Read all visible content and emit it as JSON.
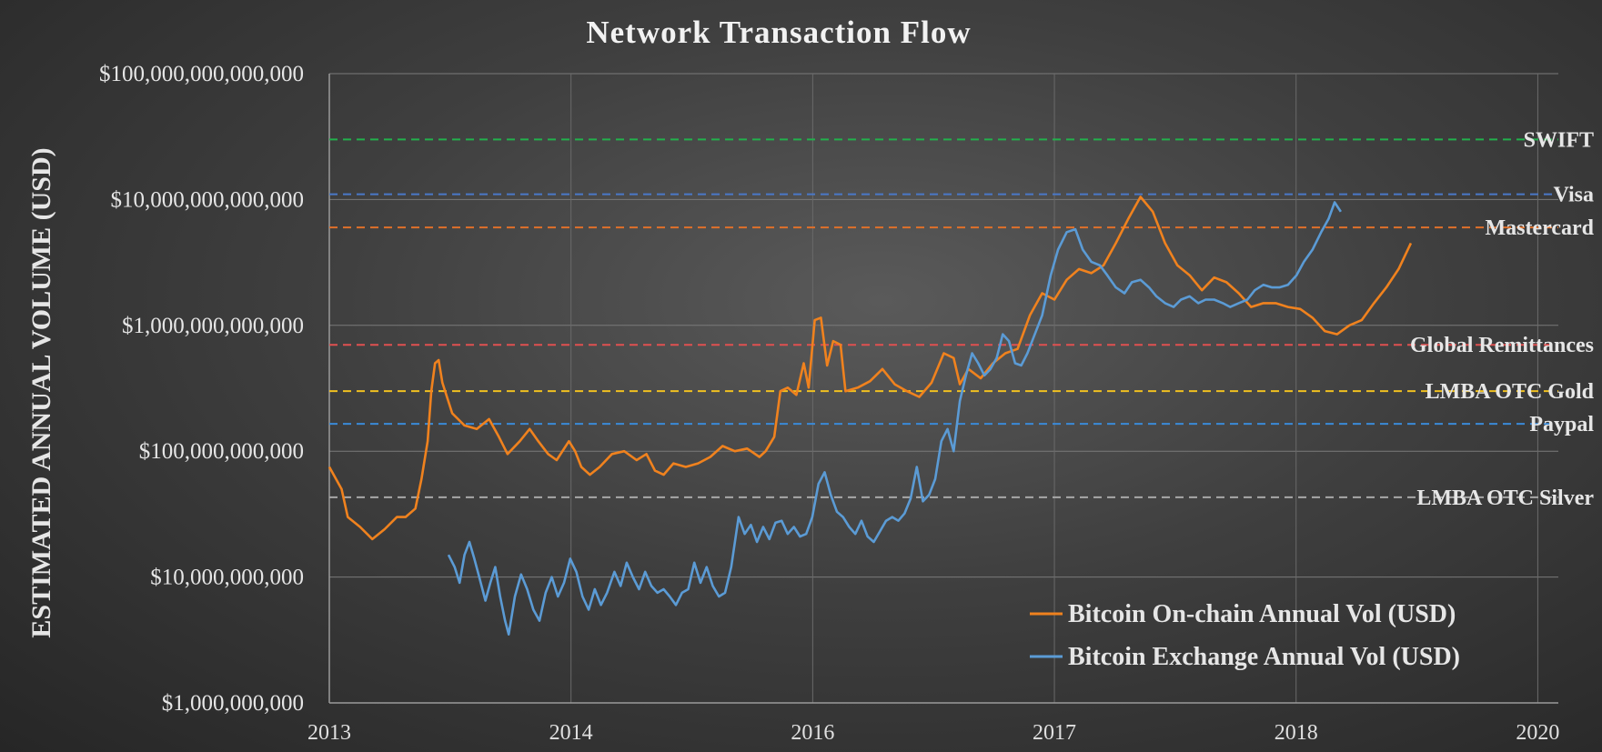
{
  "chart_data": {
    "type": "line",
    "title": "Network Transaction Flow",
    "xlabel": "",
    "ylabel": "ESTIMATED ANNUAL VOLUME (USD)",
    "yscale": "log",
    "ylim": [
      1000000000,
      100000000000000
    ],
    "y_tick_values": [
      1000000000,
      10000000000,
      100000000000,
      1000000000000,
      10000000000000,
      100000000000000
    ],
    "y_tick_labels": [
      "$1,000,000,000",
      "$10,000,000,000",
      "$100,000,000,000",
      "$1,000,000,000,000",
      "$10,000,000,000,000",
      "$100,000,000,000,000"
    ],
    "x_tick_labels": [
      "2013",
      "2014",
      "2016",
      "2017",
      "2018",
      "2020"
    ],
    "grid": true,
    "legend_position": "bottom-right",
    "benchmarks": [
      {
        "name": "SWIFT",
        "value": 30000000000000,
        "color": "#22b14c"
      },
      {
        "name": "Visa",
        "value": 11000000000000,
        "color": "#4a78c8"
      },
      {
        "name": "Mastercard",
        "value": 6000000000000,
        "color": "#e0702a"
      },
      {
        "name": "Global Remittances",
        "value": 700000000000,
        "color": "#e05050"
      },
      {
        "name": "LMBA OTC Gold",
        "value": 300000000000,
        "color": "#f0c020"
      },
      {
        "name": "Paypal",
        "value": 165000000000,
        "color": "#3a8ad8"
      },
      {
        "name": "LMBA OTC Silver",
        "value": 43000000000,
        "color": "#a8a8a8"
      }
    ],
    "series": [
      {
        "name": "Bitcoin On-chain Annual Vol (USD)",
        "color": "#f0821e",
        "points": [
          [
            0.0,
            75000000000.0
          ],
          [
            0.01,
            50000000000.0
          ],
          [
            0.015,
            30000000000.0
          ],
          [
            0.025,
            25000000000.0
          ],
          [
            0.035,
            20000000000.0
          ],
          [
            0.045,
            24000000000.0
          ],
          [
            0.055,
            30000000000.0
          ],
          [
            0.062,
            30000000000.0
          ],
          [
            0.07,
            35000000000.0
          ],
          [
            0.075,
            60000000000.0
          ],
          [
            0.08,
            120000000000.0
          ],
          [
            0.083,
            300000000000.0
          ],
          [
            0.086,
            500000000000.0
          ],
          [
            0.089,
            530000000000.0
          ],
          [
            0.092,
            350000000000.0
          ],
          [
            0.1,
            200000000000.0
          ],
          [
            0.11,
            160000000000.0
          ],
          [
            0.12,
            150000000000.0
          ],
          [
            0.13,
            180000000000.0
          ],
          [
            0.138,
            130000000000.0
          ],
          [
            0.145,
            95000000000.0
          ],
          [
            0.155,
            120000000000.0
          ],
          [
            0.163,
            150000000000.0
          ],
          [
            0.17,
            120000000000.0
          ],
          [
            0.178,
            95000000000.0
          ],
          [
            0.185,
            85000000000.0
          ],
          [
            0.195,
            120000000000.0
          ],
          [
            0.2,
            100000000000.0
          ],
          [
            0.205,
            75000000000.0
          ],
          [
            0.212,
            65000000000.0
          ],
          [
            0.22,
            75000000000.0
          ],
          [
            0.23,
            95000000000.0
          ],
          [
            0.24,
            100000000000.0
          ],
          [
            0.25,
            85000000000.0
          ],
          [
            0.258,
            95000000000.0
          ],
          [
            0.265,
            70000000000.0
          ],
          [
            0.272,
            65000000000.0
          ],
          [
            0.28,
            80000000000.0
          ],
          [
            0.29,
            75000000000.0
          ],
          [
            0.3,
            80000000000.0
          ],
          [
            0.31,
            90000000000.0
          ],
          [
            0.32,
            110000000000.0
          ],
          [
            0.33,
            100000000000.0
          ],
          [
            0.34,
            105000000000.0
          ],
          [
            0.35,
            90000000000.0
          ],
          [
            0.355,
            100000000000.0
          ],
          [
            0.362,
            130000000000.0
          ],
          [
            0.367,
            300000000000.0
          ],
          [
            0.373,
            320000000000.0
          ],
          [
            0.38,
            280000000000.0
          ],
          [
            0.386,
            500000000000.0
          ],
          [
            0.39,
            320000000000.0
          ],
          [
            0.395,
            1100000000000.0
          ],
          [
            0.4,
            1150000000000.0
          ],
          [
            0.405,
            480000000000.0
          ],
          [
            0.41,
            750000000000.0
          ],
          [
            0.416,
            700000000000.0
          ],
          [
            0.42,
            300000000000.0
          ],
          [
            0.43,
            320000000000.0
          ],
          [
            0.44,
            360000000000.0
          ],
          [
            0.45,
            450000000000.0
          ],
          [
            0.46,
            340000000000.0
          ],
          [
            0.47,
            300000000000.0
          ],
          [
            0.48,
            270000000000.0
          ],
          [
            0.49,
            350000000000.0
          ],
          [
            0.5,
            600000000000.0
          ],
          [
            0.508,
            550000000000.0
          ],
          [
            0.513,
            340000000000.0
          ],
          [
            0.52,
            450000000000.0
          ],
          [
            0.53,
            380000000000.0
          ],
          [
            0.54,
            500000000000.0
          ],
          [
            0.55,
            600000000000.0
          ],
          [
            0.56,
            650000000000.0
          ],
          [
            0.57,
            1200000000000.0
          ],
          [
            0.58,
            1800000000000.0
          ],
          [
            0.59,
            1600000000000.0
          ],
          [
            0.6,
            2300000000000.0
          ],
          [
            0.61,
            2800000000000.0
          ],
          [
            0.62,
            2600000000000.0
          ],
          [
            0.63,
            3000000000000.0
          ],
          [
            0.64,
            4500000000000.0
          ],
          [
            0.65,
            7000000000000.0
          ],
          [
            0.66,
            10500000000000.0
          ],
          [
            0.67,
            8000000000000.0
          ],
          [
            0.68,
            4500000000000.0
          ],
          [
            0.69,
            3000000000000.0
          ],
          [
            0.7,
            2500000000000.0
          ],
          [
            0.71,
            1900000000000.0
          ],
          [
            0.72,
            2400000000000.0
          ],
          [
            0.73,
            2200000000000.0
          ],
          [
            0.74,
            1800000000000.0
          ],
          [
            0.75,
            1400000000000.0
          ],
          [
            0.76,
            1500000000000.0
          ],
          [
            0.77,
            1500000000000.0
          ],
          [
            0.78,
            1400000000000.0
          ],
          [
            0.79,
            1350000000000.0
          ],
          [
            0.8,
            1150000000000.0
          ],
          [
            0.81,
            900000000000.0
          ],
          [
            0.82,
            850000000000.0
          ],
          [
            0.83,
            1000000000000.0
          ],
          [
            0.84,
            1100000000000.0
          ],
          [
            0.85,
            1500000000000.0
          ],
          [
            0.86,
            2000000000000.0
          ],
          [
            0.87,
            2800000000000.0
          ],
          [
            0.88,
            4500000000000.0
          ]
        ]
      },
      {
        "name": "Bitcoin Exchange Annual Vol (USD)",
        "color": "#5b9bd5",
        "points": [
          [
            0.097,
            15000000000.0
          ],
          [
            0.102,
            12000000000.0
          ],
          [
            0.106,
            9000000000.0
          ],
          [
            0.11,
            15000000000.0
          ],
          [
            0.114,
            19000000000.0
          ],
          [
            0.118,
            14000000000.0
          ],
          [
            0.122,
            10000000000.0
          ],
          [
            0.127,
            6500000000.0
          ],
          [
            0.131,
            9000000000.0
          ],
          [
            0.135,
            12000000000.0
          ],
          [
            0.139,
            7000000000.0
          ],
          [
            0.143,
            4500000000.0
          ],
          [
            0.146,
            3500000000.0
          ],
          [
            0.151,
            7000000000.0
          ],
          [
            0.156,
            10500000000.0
          ],
          [
            0.161,
            8000000000.0
          ],
          [
            0.166,
            5500000000.0
          ],
          [
            0.171,
            4500000000.0
          ],
          [
            0.176,
            7500000000.0
          ],
          [
            0.181,
            10000000000.0
          ],
          [
            0.186,
            7000000000.0
          ],
          [
            0.191,
            9000000000.0
          ],
          [
            0.196,
            14000000000.0
          ],
          [
            0.201,
            11000000000.0
          ],
          [
            0.206,
            7000000000.0
          ],
          [
            0.211,
            5500000000.0
          ],
          [
            0.216,
            8000000000.0
          ],
          [
            0.221,
            6000000000.0
          ],
          [
            0.226,
            7500000000.0
          ],
          [
            0.232,
            11000000000.0
          ],
          [
            0.237,
            8500000000.0
          ],
          [
            0.242,
            13000000000.0
          ],
          [
            0.247,
            10000000000.0
          ],
          [
            0.252,
            8000000000.0
          ],
          [
            0.257,
            11000000000.0
          ],
          [
            0.262,
            8500000000.0
          ],
          [
            0.267,
            7500000000.0
          ],
          [
            0.272,
            8000000000.0
          ],
          [
            0.277,
            7000000000.0
          ],
          [
            0.282,
            6000000000.0
          ],
          [
            0.287,
            7500000000.0
          ],
          [
            0.292,
            8000000000.0
          ],
          [
            0.297,
            13000000000.0
          ],
          [
            0.302,
            9000000000.0
          ],
          [
            0.307,
            12000000000.0
          ],
          [
            0.312,
            8500000000.0
          ],
          [
            0.317,
            7000000000.0
          ],
          [
            0.322,
            7500000000.0
          ],
          [
            0.327,
            12000000000.0
          ],
          [
            0.333,
            30000000000.0
          ],
          [
            0.338,
            22000000000.0
          ],
          [
            0.343,
            26000000000.0
          ],
          [
            0.348,
            19000000000.0
          ],
          [
            0.353,
            25000000000.0
          ],
          [
            0.358,
            20000000000.0
          ],
          [
            0.363,
            27000000000.0
          ],
          [
            0.368,
            28000000000.0
          ],
          [
            0.373,
            22000000000.0
          ],
          [
            0.378,
            25000000000.0
          ],
          [
            0.383,
            21000000000.0
          ],
          [
            0.388,
            22000000000.0
          ],
          [
            0.393,
            30000000000.0
          ],
          [
            0.398,
            55000000000.0
          ],
          [
            0.403,
            68000000000.0
          ],
          [
            0.408,
            45000000000.0
          ],
          [
            0.413,
            33000000000.0
          ],
          [
            0.418,
            30000000000.0
          ],
          [
            0.423,
            25000000000.0
          ],
          [
            0.428,
            22000000000.0
          ],
          [
            0.433,
            28000000000.0
          ],
          [
            0.438,
            21000000000.0
          ],
          [
            0.443,
            19000000000.0
          ],
          [
            0.448,
            23000000000.0
          ],
          [
            0.453,
            28000000000.0
          ],
          [
            0.458,
            30000000000.0
          ],
          [
            0.463,
            28000000000.0
          ],
          [
            0.468,
            32000000000.0
          ],
          [
            0.473,
            42000000000.0
          ],
          [
            0.478,
            75000000000.0
          ],
          [
            0.483,
            40000000000.0
          ],
          [
            0.488,
            45000000000.0
          ],
          [
            0.493,
            60000000000.0
          ],
          [
            0.498,
            120000000000.0
          ],
          [
            0.503,
            150000000000.0
          ],
          [
            0.508,
            100000000000.0
          ],
          [
            0.513,
            250000000000.0
          ],
          [
            0.518,
            400000000000.0
          ],
          [
            0.523,
            600000000000.0
          ],
          [
            0.528,
            500000000000.0
          ],
          [
            0.533,
            400000000000.0
          ],
          [
            0.538,
            450000000000.0
          ],
          [
            0.543,
            550000000000.0
          ],
          [
            0.548,
            850000000000.0
          ],
          [
            0.553,
            750000000000.0
          ],
          [
            0.558,
            500000000000.0
          ],
          [
            0.563,
            480000000000.0
          ],
          [
            0.568,
            600000000000.0
          ],
          [
            0.573,
            800000000000.0
          ],
          [
            0.58,
            1200000000000.0
          ],
          [
            0.587,
            2500000000000.0
          ],
          [
            0.593,
            4000000000000.0
          ],
          [
            0.6,
            5500000000000.0
          ],
          [
            0.607,
            5800000000000.0
          ],
          [
            0.613,
            4000000000000.0
          ],
          [
            0.62,
            3200000000000.0
          ],
          [
            0.627,
            3000000000000.0
          ],
          [
            0.633,
            2500000000000.0
          ],
          [
            0.64,
            2000000000000.0
          ],
          [
            0.647,
            1800000000000.0
          ],
          [
            0.653,
            2200000000000.0
          ],
          [
            0.66,
            2300000000000.0
          ],
          [
            0.667,
            2000000000000.0
          ],
          [
            0.673,
            1700000000000.0
          ],
          [
            0.68,
            1500000000000.0
          ],
          [
            0.687,
            1400000000000.0
          ],
          [
            0.693,
            1600000000000.0
          ],
          [
            0.7,
            1700000000000.0
          ],
          [
            0.707,
            1500000000000.0
          ],
          [
            0.713,
            1600000000000.0
          ],
          [
            0.72,
            1600000000000.0
          ],
          [
            0.727,
            1500000000000.0
          ],
          [
            0.733,
            1400000000000.0
          ],
          [
            0.74,
            1500000000000.0
          ],
          [
            0.747,
            1600000000000.0
          ],
          [
            0.753,
            1900000000000.0
          ],
          [
            0.76,
            2100000000000.0
          ],
          [
            0.767,
            2000000000000.0
          ],
          [
            0.773,
            2000000000000.0
          ],
          [
            0.78,
            2100000000000.0
          ],
          [
            0.787,
            2500000000000.0
          ],
          [
            0.793,
            3200000000000.0
          ],
          [
            0.8,
            4000000000000.0
          ],
          [
            0.807,
            5500000000000.0
          ],
          [
            0.813,
            7000000000000.0
          ],
          [
            0.818,
            9500000000000.0
          ],
          [
            0.823,
            8000000000000.0
          ]
        ]
      }
    ]
  }
}
